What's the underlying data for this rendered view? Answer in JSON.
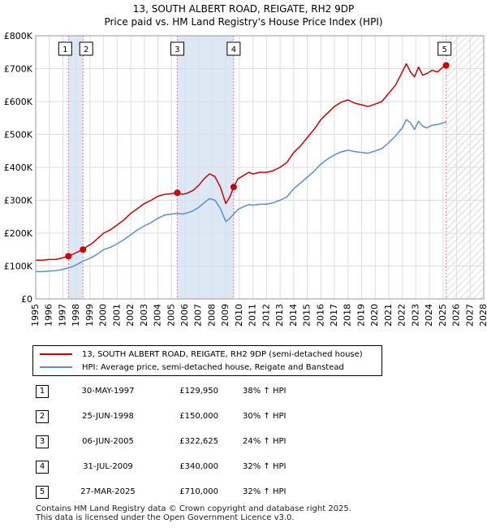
{
  "title_line1": "13, SOUTH ALBERT ROAD, REIGATE, RH2 9DP",
  "title_line2": "Price paid vs. HM Land Registry's House Price Index (HPI)",
  "chart_data": {
    "type": "line",
    "xlim": [
      1995,
      2028
    ],
    "ylim": [
      0,
      800000
    ],
    "x_ticks": [
      1995,
      1996,
      1997,
      1998,
      1999,
      2000,
      2001,
      2002,
      2003,
      2004,
      2005,
      2006,
      2007,
      2008,
      2009,
      2010,
      2011,
      2012,
      2013,
      2014,
      2015,
      2016,
      2017,
      2018,
      2019,
      2020,
      2021,
      2022,
      2023,
      2024,
      2025,
      2026,
      2027,
      2028
    ],
    "y_ticks": [
      0,
      100000,
      200000,
      300000,
      400000,
      500000,
      600000,
      700000,
      800000
    ],
    "y_tick_labels": [
      "£0",
      "£100K",
      "£200K",
      "£300K",
      "£400K",
      "£500K",
      "£600K",
      "£700K",
      "£800K"
    ],
    "grid": true,
    "colors": {
      "property": "#cc0000",
      "hpi": "#5b8fcf",
      "shade": "#dde8f6",
      "marker_line": "#e08080"
    },
    "shaded_ranges": [
      [
        1997.41,
        1998.48
      ],
      [
        2005.43,
        2009.58
      ]
    ],
    "future_hatch_from": 2025.25,
    "series": [
      {
        "name": "13, SOUTH ALBERT ROAD, REIGATE, RH2 9DP (semi-detached house)",
        "x": [
          1995.0,
          1995.5,
          1996.0,
          1996.5,
          1997.0,
          1997.41,
          1997.8,
          1998.2,
          1998.48,
          1998.8,
          1999.2,
          1999.6,
          2000.0,
          2000.5,
          2001.0,
          2001.5,
          2002.0,
          2002.5,
          2003.0,
          2003.5,
          2004.0,
          2004.5,
          2005.0,
          2005.43,
          2005.8,
          2006.2,
          2006.6,
          2007.0,
          2007.4,
          2007.8,
          2008.2,
          2008.6,
          2009.0,
          2009.3,
          2009.58,
          2009.9,
          2010.3,
          2010.7,
          2011.0,
          2011.5,
          2012.0,
          2012.5,
          2013.0,
          2013.5,
          2014.0,
          2014.5,
          2015.0,
          2015.5,
          2016.0,
          2016.5,
          2017.0,
          2017.5,
          2018.0,
          2018.5,
          2019.0,
          2019.5,
          2020.0,
          2020.5,
          2021.0,
          2021.5,
          2022.0,
          2022.3,
          2022.6,
          2022.9,
          2023.2,
          2023.5,
          2023.8,
          2024.2,
          2024.6,
          2025.0,
          2025.25
        ],
        "y": [
          118000,
          118000,
          120000,
          120000,
          125000,
          129950,
          137000,
          145000,
          150000,
          160000,
          170000,
          185000,
          200000,
          210000,
          225000,
          240000,
          260000,
          275000,
          290000,
          300000,
          312000,
          318000,
          320000,
          322625,
          318000,
          322000,
          330000,
          345000,
          365000,
          380000,
          372000,
          340000,
          290000,
          310000,
          340000,
          365000,
          375000,
          385000,
          380000,
          385000,
          385000,
          390000,
          400000,
          415000,
          445000,
          465000,
          490000,
          515000,
          545000,
          565000,
          585000,
          598000,
          605000,
          595000,
          590000,
          585000,
          592000,
          600000,
          625000,
          650000,
          690000,
          715000,
          690000,
          675000,
          705000,
          680000,
          685000,
          695000,
          690000,
          705000,
          710000
        ]
      },
      {
        "name": "HPI: Average price, semi-detached house, Reigate and Banstead",
        "x": [
          1995.0,
          1995.5,
          1996.0,
          1996.5,
          1997.0,
          1997.41,
          1997.8,
          1998.2,
          1998.48,
          1998.8,
          1999.2,
          1999.6,
          2000.0,
          2000.5,
          2001.0,
          2001.5,
          2002.0,
          2002.5,
          2003.0,
          2003.5,
          2004.0,
          2004.5,
          2005.0,
          2005.43,
          2005.8,
          2006.2,
          2006.6,
          2007.0,
          2007.4,
          2007.8,
          2008.2,
          2008.6,
          2009.0,
          2009.3,
          2009.58,
          2009.9,
          2010.3,
          2010.7,
          2011.0,
          2011.5,
          2012.0,
          2012.5,
          2013.0,
          2013.5,
          2014.0,
          2014.5,
          2015.0,
          2015.5,
          2016.0,
          2016.5,
          2017.0,
          2017.5,
          2018.0,
          2018.5,
          2019.0,
          2019.5,
          2020.0,
          2020.5,
          2021.0,
          2021.5,
          2022.0,
          2022.3,
          2022.6,
          2022.9,
          2023.2,
          2023.5,
          2023.8,
          2024.2,
          2024.6,
          2025.0,
          2025.25
        ],
        "y": [
          83000,
          83000,
          85000,
          86000,
          90000,
          94000,
          100000,
          108000,
          115000,
          120000,
          128000,
          138000,
          150000,
          157000,
          168000,
          180000,
          195000,
          210000,
          222000,
          232000,
          245000,
          255000,
          258000,
          260000,
          258000,
          262000,
          268000,
          278000,
          292000,
          305000,
          300000,
          275000,
          235000,
          245000,
          258000,
          272000,
          280000,
          287000,
          285000,
          288000,
          288000,
          292000,
          300000,
          310000,
          335000,
          352000,
          370000,
          388000,
          410000,
          425000,
          438000,
          447000,
          452000,
          448000,
          445000,
          443000,
          450000,
          457000,
          475000,
          495000,
          520000,
          545000,
          535000,
          515000,
          540000,
          525000,
          520000,
          528000,
          530000,
          535000,
          538000
        ]
      }
    ],
    "transactions": [
      {
        "label": "1",
        "x": 1997.41,
        "y": 129950,
        "date": "30-MAY-1997",
        "price": "£129,950",
        "hpi": "38% ↑ HPI"
      },
      {
        "label": "2",
        "x": 1998.48,
        "y": 150000,
        "date": "25-JUN-1998",
        "price": "£150,000",
        "hpi": "30% ↑ HPI"
      },
      {
        "label": "3",
        "x": 2005.43,
        "y": 322625,
        "date": "06-JUN-2005",
        "price": "£322,625",
        "hpi": "24% ↑ HPI"
      },
      {
        "label": "4",
        "x": 2009.58,
        "y": 340000,
        "date": "31-JUL-2009",
        "price": "£340,000",
        "hpi": "32% ↑ HPI"
      },
      {
        "label": "5",
        "x": 2025.23,
        "y": 710000,
        "date": "27-MAR-2025",
        "price": "£710,000",
        "hpi": "32% ↑ HPI"
      }
    ]
  },
  "legend": {
    "property_label": "13, SOUTH ALBERT ROAD, REIGATE, RH2 9DP (semi-detached house)",
    "hpi_label": "HPI: Average price, semi-detached house, Reigate and Banstead"
  },
  "footer_line1": "Contains HM Land Registry data © Crown copyright and database right 2025.",
  "footer_line2": "This data is licensed under the Open Government Licence v3.0."
}
